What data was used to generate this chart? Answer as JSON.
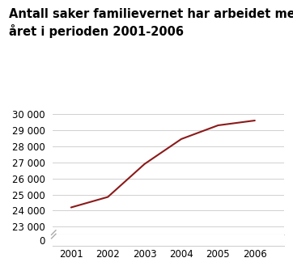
{
  "title_line1": "Antall saker familievernet har arbeidet med i løpet av",
  "title_line2": "året i perioden 2001-2006",
  "x": [
    2001,
    2002,
    2003,
    2004,
    2005,
    2006
  ],
  "y": [
    24200,
    24850,
    26900,
    28450,
    29300,
    29600
  ],
  "line_color": "#8B1A1A",
  "background_color": "#ffffff",
  "grid_color": "#d0d0d0",
  "title_fontsize": 10.5,
  "tick_fontsize": 8.5,
  "xlim": [
    2000.5,
    2006.8
  ],
  "ylim_main": [
    22500,
    30500
  ],
  "ylim_zero": [
    -500,
    500
  ],
  "yticks_main": [
    23000,
    24000,
    25000,
    26000,
    27000,
    28000,
    29000,
    30000
  ],
  "ytick_labels_main": [
    "23 000",
    "24 000",
    "25 000",
    "26 000",
    "27 000",
    "28 000",
    "29 000",
    "30 000"
  ],
  "yticks_zero": [
    0
  ],
  "ytick_labels_zero": [
    "0"
  ]
}
